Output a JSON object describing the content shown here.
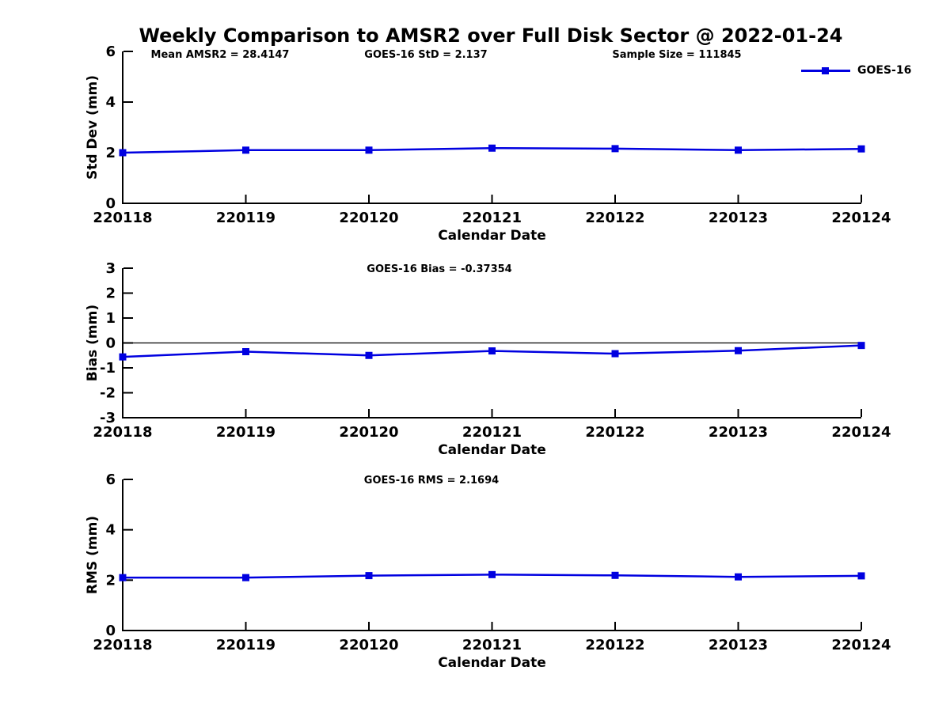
{
  "page": {
    "title": "Weekly Comparison to AMSR2 over Full Disk Sector @ 2022-01-24",
    "background": "#ffffff",
    "text_color": "#000000",
    "accent_color": "#0000e0"
  },
  "legend": {
    "label": "GOES-16",
    "color": "#0000e0",
    "marker": "square",
    "position": "top-right-outside"
  },
  "chart_data": [
    {
      "type": "line",
      "annotations": [
        "Mean AMSR2 = 28.4147",
        "GOES-16 StD = 2.137",
        "Sample Size = 111845"
      ],
      "categories": [
        "220118",
        "220119",
        "220120",
        "220121",
        "220122",
        "220123",
        "220124"
      ],
      "series": [
        {
          "name": "GOES-16",
          "color": "#0000e0",
          "marker": "square",
          "values": [
            2.0,
            2.1,
            2.1,
            2.18,
            2.16,
            2.1,
            2.15
          ]
        }
      ],
      "xlabel": "Calendar Date",
      "ylabel": "Std Dev (mm)",
      "ylim": [
        0,
        6
      ],
      "yticks": [
        0,
        2,
        4,
        6
      ],
      "grid": false,
      "zero_line": false
    },
    {
      "type": "line",
      "annotations": [
        "GOES-16 Bias  = -0.37354"
      ],
      "categories": [
        "220118",
        "220119",
        "220120",
        "220121",
        "220122",
        "220123",
        "220124"
      ],
      "series": [
        {
          "name": "GOES-16",
          "color": "#0000e0",
          "marker": "square",
          "values": [
            -0.56,
            -0.35,
            -0.5,
            -0.32,
            -0.43,
            -0.31,
            -0.1
          ]
        }
      ],
      "xlabel": "Calendar Date",
      "ylabel": "Bias (mm)",
      "ylim": [
        -3,
        3
      ],
      "yticks": [
        -3,
        -2,
        -1,
        0,
        1,
        2,
        3
      ],
      "grid": false,
      "zero_line": true
    },
    {
      "type": "line",
      "annotations": [
        "GOES-16 RMS = 2.1694"
      ],
      "categories": [
        "220118",
        "220119",
        "220120",
        "220121",
        "220122",
        "220123",
        "220124"
      ],
      "series": [
        {
          "name": "GOES-16",
          "color": "#0000e0",
          "marker": "square",
          "values": [
            2.1,
            2.1,
            2.18,
            2.22,
            2.19,
            2.13,
            2.17
          ]
        }
      ],
      "xlabel": "Calendar Date",
      "ylabel": "RMS (mm)",
      "ylim": [
        0,
        6
      ],
      "yticks": [
        0,
        2,
        4,
        6
      ],
      "grid": false,
      "zero_line": false
    }
  ]
}
